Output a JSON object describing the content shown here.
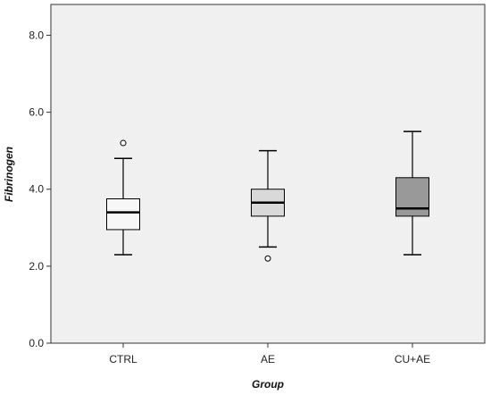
{
  "chart_data": {
    "type": "boxplot",
    "xlabel": "Group",
    "ylabel": "Fibrinogen",
    "ylim": [
      0,
      8.8
    ],
    "yticks": [
      "0.0",
      "2.0",
      "4.0",
      "6.0",
      "8.0"
    ],
    "ytick_values": [
      0,
      2,
      4,
      6,
      8
    ],
    "grid": false,
    "plot_background": "#f0f0f0",
    "categories": [
      "CTRL",
      "AE",
      "CU+AE"
    ],
    "boxes": [
      {
        "category": "CTRL",
        "whisker_low": 2.3,
        "q1": 2.95,
        "median": 3.4,
        "q3": 3.75,
        "whisker_high": 4.8,
        "outliers": [
          5.2
        ],
        "fill": "#f7f7f7"
      },
      {
        "category": "AE",
        "whisker_low": 2.5,
        "q1": 3.3,
        "median": 3.65,
        "q3": 4.0,
        "whisker_high": 5.0,
        "outliers": [
          2.2
        ],
        "fill": "#d9d9d9"
      },
      {
        "category": "CU+AE",
        "whisker_low": 2.3,
        "q1": 3.3,
        "median": 3.5,
        "q3": 4.3,
        "whisker_high": 5.5,
        "outliers": [],
        "fill": "#999999"
      }
    ]
  }
}
